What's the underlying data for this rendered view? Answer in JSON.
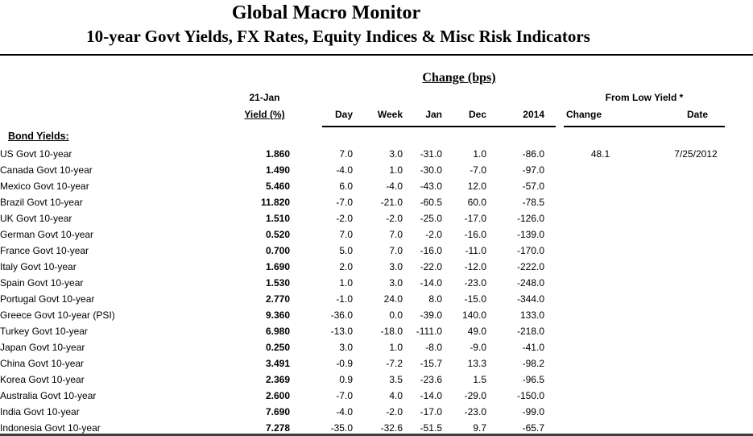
{
  "header": {
    "title": "Global Macro Monitor",
    "subtitle": "10-year Govt Yields, FX Rates, Equity Indices & Misc Risk Indicators"
  },
  "table": {
    "change_bps_label": "Change (bps)",
    "asof_line1": "21-Jan",
    "asof_line2": "Yield (%)",
    "change_cols": [
      "Day",
      "Week",
      "Jan",
      "Dec",
      "2014"
    ],
    "from_low_label": "From Low Yield *",
    "from_low_cols": [
      "Change",
      "Date"
    ],
    "section_label": "Bond Yields:",
    "rows": [
      {
        "label": "US Govt 10-year",
        "yield": "1.860",
        "day": "7.0",
        "week": "3.0",
        "jan": "-31.0",
        "dec": "1.0",
        "y2014": "-86.0",
        "low_change": "48.1",
        "low_date": "7/25/2012"
      },
      {
        "label": "Canada Govt 10-year",
        "yield": "1.490",
        "day": "-4.0",
        "week": "1.0",
        "jan": "-30.0",
        "dec": "-7.0",
        "y2014": "-97.0",
        "low_change": "",
        "low_date": ""
      },
      {
        "label": "Mexico Govt 10-year",
        "yield": "5.460",
        "day": "6.0",
        "week": "-4.0",
        "jan": "-43.0",
        "dec": "12.0",
        "y2014": "-57.0",
        "low_change": "",
        "low_date": ""
      },
      {
        "label": "Brazil Govt 10-year",
        "yield": "11.820",
        "day": "-7.0",
        "week": "-21.0",
        "jan": "-60.5",
        "dec": "60.0",
        "y2014": "-78.5",
        "low_change": "",
        "low_date": ""
      },
      {
        "label": "UK Govt 10-year",
        "yield": "1.510",
        "day": "-2.0",
        "week": "-2.0",
        "jan": "-25.0",
        "dec": "-17.0",
        "y2014": "-126.0",
        "low_change": "",
        "low_date": ""
      },
      {
        "label": "German Govt 10-year",
        "yield": "0.520",
        "day": "7.0",
        "week": "7.0",
        "jan": "-2.0",
        "dec": "-16.0",
        "y2014": "-139.0",
        "low_change": "",
        "low_date": ""
      },
      {
        "label": "France Govt 10-year",
        "yield": "0.700",
        "day": "5.0",
        "week": "7.0",
        "jan": "-16.0",
        "dec": "-11.0",
        "y2014": "-170.0",
        "low_change": "",
        "low_date": ""
      },
      {
        "label": "Italy Govt 10-year",
        "yield": "1.690",
        "day": "2.0",
        "week": "3.0",
        "jan": "-22.0",
        "dec": "-12.0",
        "y2014": "-222.0",
        "low_change": "",
        "low_date": ""
      },
      {
        "label": "Spain Govt 10-year",
        "yield": "1.530",
        "day": "1.0",
        "week": "3.0",
        "jan": "-14.0",
        "dec": "-23.0",
        "y2014": "-248.0",
        "low_change": "",
        "low_date": ""
      },
      {
        "label": "Portugal Govt 10-year",
        "yield": "2.770",
        "day": "-1.0",
        "week": "24.0",
        "jan": "8.0",
        "dec": "-15.0",
        "y2014": "-344.0",
        "low_change": "",
        "low_date": ""
      },
      {
        "label": "Greece Govt 10-year (PSI)",
        "yield": "9.360",
        "day": "-36.0",
        "week": "0.0",
        "jan": "-39.0",
        "dec": "140.0",
        "y2014": "133.0",
        "low_change": "",
        "low_date": ""
      },
      {
        "label": "Turkey Govt 10-year",
        "yield": "6.980",
        "day": "-13.0",
        "week": "-18.0",
        "jan": "-111.0",
        "dec": "49.0",
        "y2014": "-218.0",
        "low_change": "",
        "low_date": ""
      },
      {
        "label": "Japan Govt 10-year",
        "yield": "0.250",
        "day": "3.0",
        "week": "1.0",
        "jan": "-8.0",
        "dec": "-9.0",
        "y2014": "-41.0",
        "low_change": "",
        "low_date": ""
      },
      {
        "label": "China Govt 10-year",
        "yield": "3.491",
        "day": "-0.9",
        "week": "-7.2",
        "jan": "-15.7",
        "dec": "13.3",
        "y2014": "-98.2",
        "low_change": "",
        "low_date": ""
      },
      {
        "label": "Korea Govt 10-year",
        "yield": "2.369",
        "day": "0.9",
        "week": "3.5",
        "jan": "-23.6",
        "dec": "1.5",
        "y2014": "-96.5",
        "low_change": "",
        "low_date": ""
      },
      {
        "label": "Australia Govt 10-year",
        "yield": "2.600",
        "day": "-7.0",
        "week": "4.0",
        "jan": "-14.0",
        "dec": "-29.0",
        "y2014": "-150.0",
        "low_change": "",
        "low_date": ""
      },
      {
        "label": "India Govt 10-year",
        "yield": "7.690",
        "day": "-4.0",
        "week": "-2.0",
        "jan": "-17.0",
        "dec": "-23.0",
        "y2014": "-99.0",
        "low_change": "",
        "low_date": ""
      },
      {
        "label": "Indonesia Govt 10-year",
        "yield": "7.278",
        "day": "-35.0",
        "week": "-32.6",
        "jan": "-51.5",
        "dec": "9.7",
        "y2014": "-65.7",
        "low_change": "",
        "low_date": ""
      }
    ]
  }
}
